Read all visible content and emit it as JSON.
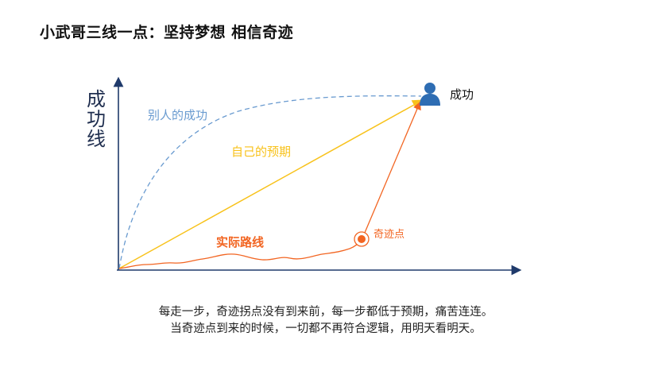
{
  "title": "小武哥三线一点：坚持梦想 相信奇迹",
  "diagram": {
    "y_axis_label": "成功线",
    "success_label": "成功",
    "others_success_label": "别人的成功",
    "own_expectation_label": "自己的预期",
    "actual_route_label": "实际路线",
    "miracle_point_label": "奇迹点",
    "icon": "person-icon",
    "colors": {
      "axis": "#1f3a6b",
      "others_success": "#6a9bd0",
      "own_expectation": "#f8c21b",
      "actual_route": "#f26522",
      "person": "#2e6db3"
    }
  },
  "caption": {
    "line1": "每走一步，奇迹拐点没有到来前，每一步都低于预期，痛苦连连。",
    "line2": "当奇迹点到来的时候，一切都不再符合逻辑，用明天看明天。"
  }
}
